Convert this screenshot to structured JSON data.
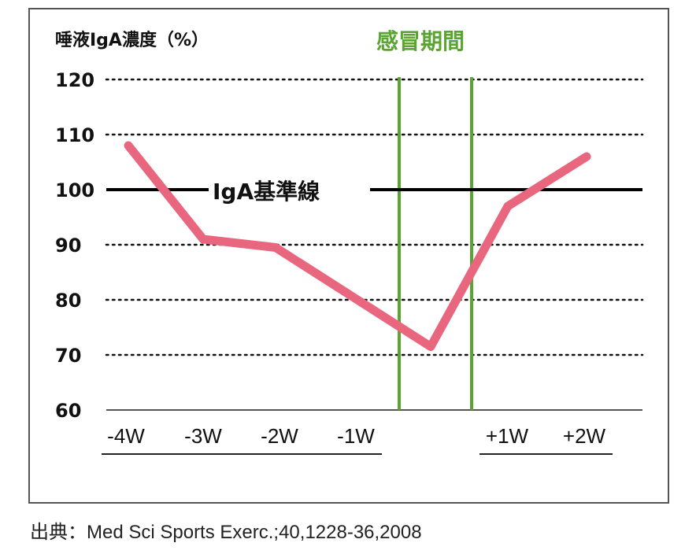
{
  "chart_data": {
    "type": "line",
    "title": "",
    "ylabel": "唾液IgA濃度（%）",
    "xlabel": "",
    "ylim": [
      60,
      120
    ],
    "yticks": [
      120,
      110,
      100,
      90,
      80,
      70,
      60
    ],
    "categories": [
      "-4W",
      "-3W",
      "-2W",
      "-1W",
      "感冒期間",
      "+1W",
      "+2W"
    ],
    "x_tick_labels": [
      "-4W",
      "-3W",
      "-2W",
      "-1W",
      "+1W",
      "+2W"
    ],
    "series": [
      {
        "name": "唾液IgA濃度",
        "color": "#e8677e",
        "points": [
          {
            "x": "-4W",
            "y": 108
          },
          {
            "x": "-3W",
            "y": 91
          },
          {
            "x": "-2W",
            "y": 89.5
          },
          {
            "x": "感冒期間",
            "y": 71.5
          },
          {
            "x": "+1W",
            "y": 97
          },
          {
            "x": "+2W",
            "y": 106
          }
        ]
      }
    ],
    "reference_line": {
      "label": "IgA基準線",
      "y": 100,
      "color": "#000000"
    },
    "highlight_period": {
      "label": "感冒期間",
      "color": "#5aa532"
    },
    "grid": "dotted horizontal",
    "legend": "none"
  },
  "source": "出典：Med Sci Sports Exerc.;40,1228-36,2008"
}
